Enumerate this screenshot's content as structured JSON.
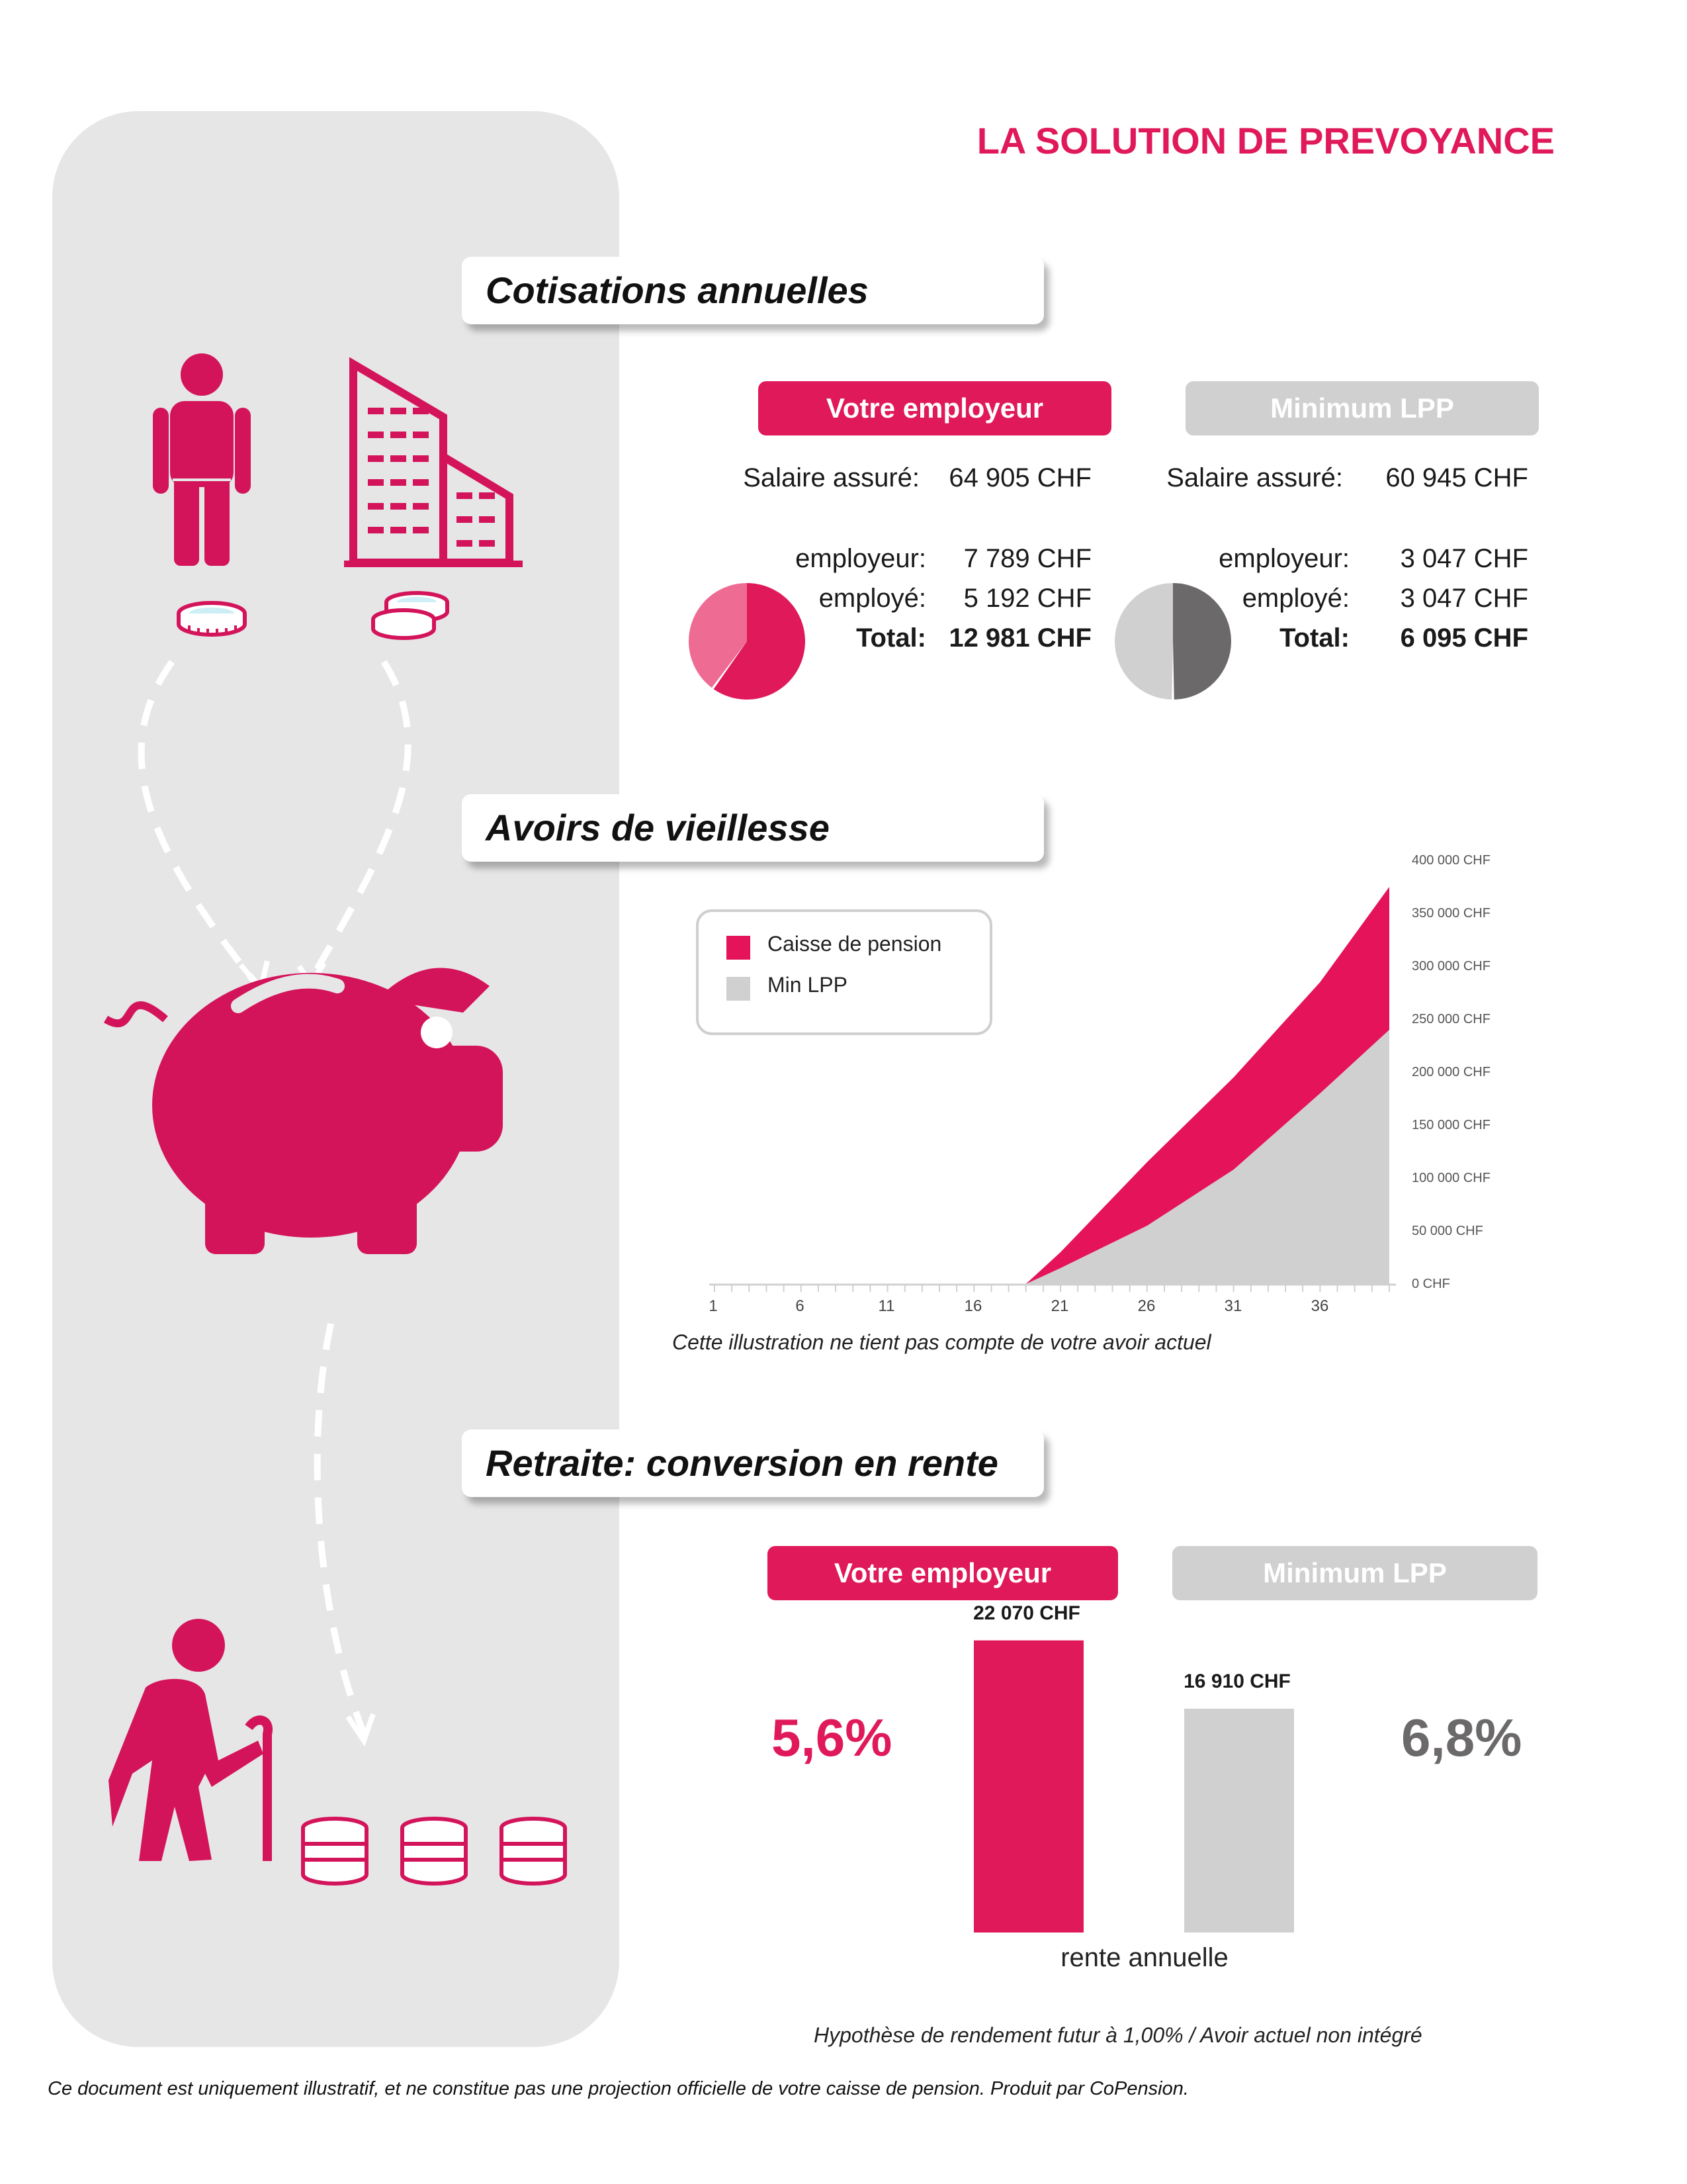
{
  "title": "LA SOLUTION DE PREVOYANCE",
  "colors": {
    "accent": "#e0195a",
    "accent_light": "#ee6b94",
    "grey": "#d1d0d1",
    "dark_grey": "#6b6969",
    "panel": "#e6e6e7"
  },
  "icons": [
    "person-icon",
    "office-building-icon",
    "coin-icon",
    "coin-stack-icon",
    "piggy-bank-icon",
    "elderly-person-with-cane-icon",
    "dashed-arrow-icon"
  ],
  "sections": {
    "cotisations": "Cotisations annuelles",
    "avoirs": "Avoirs de vieillesse",
    "retraite": "Retraite: conversion en rente"
  },
  "cotisations": {
    "employer": {
      "label": "Votre employeur",
      "salaire_label": "Salaire assuré:",
      "salaire_value": "64 905 CHF",
      "employeur_label": "employeur:",
      "employeur_value": "7 789 CHF",
      "employe_label": "employé:",
      "employe_value": "5 192 CHF",
      "total_label": "Total:",
      "total_value": "12 981 CHF",
      "pie": {
        "employeur": 7789,
        "employe": 5192
      }
    },
    "lpp": {
      "label": "Minimum LPP",
      "salaire_label": "Salaire assuré:",
      "salaire_value": "60 945 CHF",
      "employeur_label": "employeur:",
      "employeur_value": "3 047 CHF",
      "employe_label": "employé:",
      "employe_value": "3 047 CHF",
      "total_label": "Total:",
      "total_value": "6 095 CHF",
      "pie": {
        "employeur": 3047,
        "employe": 3047
      }
    }
  },
  "chart_data": {
    "type": "area",
    "x": [
      1,
      19,
      21,
      26,
      31,
      36,
      40
    ],
    "series": [
      {
        "name": "Caisse de pension",
        "values": [
          0,
          0,
          30000,
          115000,
          195000,
          285000,
          375000
        ]
      },
      {
        "name": "Min LPP",
        "values": [
          0,
          0,
          15000,
          55000,
          108000,
          180000,
          240000
        ]
      }
    ],
    "x_ticks": [
      "1",
      "6",
      "11",
      "16",
      "21",
      "26",
      "31",
      "36"
    ],
    "y_ticks": [
      "0 CHF",
      "50 000 CHF",
      "100 000 CHF",
      "150 000 CHF",
      "200 000 CHF",
      "250 000 CHF",
      "300 000 CHF",
      "350 000 CHF",
      "400 000 CHF"
    ],
    "xlim": [
      1,
      40
    ],
    "ylim": [
      0,
      400000
    ],
    "legend_position": "top-left"
  },
  "chart_note": "Cette illustration ne tient pas compte de votre avoir actuel",
  "retraite": {
    "employer_label": "Votre employeur",
    "lpp_label": "Minimum LPP",
    "employer_rate": "5,6%",
    "lpp_rate": "6,8%",
    "employer_rente": "22 070 CHF",
    "lpp_rente": "16 910 CHF",
    "bars": {
      "employer": 22070,
      "lpp": 16910
    },
    "rente_label": "rente annuelle"
  },
  "hypothese": "Hypothèse de rendement futur à 1,00% / Avoir actuel non intégré",
  "disclaimer": "Ce document est uniquement illustratif, et ne constitue pas une projection officielle de votre caisse de pension. Produit par CoPension."
}
